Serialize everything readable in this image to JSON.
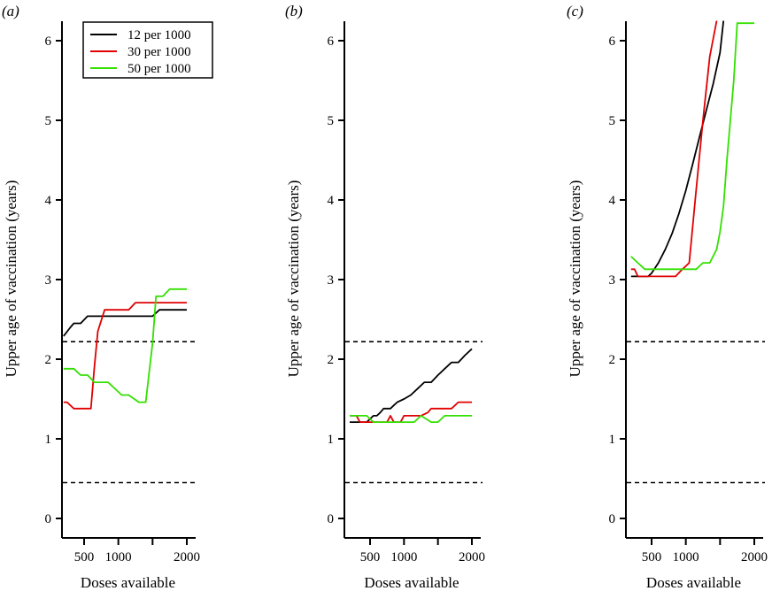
{
  "chart_data": [
    {
      "type": "line",
      "panel_label": "(a)",
      "xlabel": "Doses available",
      "ylabel": "Upper age of vaccination (years)",
      "xticks": [
        500,
        1000,
        1500,
        2000
      ],
      "xtick_labels": [
        "500",
        "1000",
        "",
        "2000"
      ],
      "yticks": [
        0,
        1,
        2,
        3,
        4,
        5,
        6
      ],
      "ytick_labels": [
        "0",
        "1",
        "2",
        "3",
        "4",
        "5",
        "6"
      ],
      "xlim": [
        175,
        2000
      ],
      "ylim": [
        0,
        6.25
      ],
      "reference_lines": [
        2.22,
        0.45
      ],
      "legend": {
        "placement": "top",
        "entries": [
          "12 per 1000",
          "30 per 1000",
          "50 per 1000"
        ]
      },
      "series": [
        {
          "name": "12 per 1000",
          "color": "#000000",
          "x": [
            200,
            300,
            350,
            450,
            550,
            1500,
            1600,
            2000
          ],
          "y": [
            2.29,
            2.4,
            2.45,
            2.45,
            2.54,
            2.54,
            2.62,
            2.62
          ]
        },
        {
          "name": "30 per 1000",
          "color": "#e00000",
          "x": [
            200,
            250,
            350,
            600,
            650,
            700,
            800,
            1150,
            1250,
            2000
          ],
          "y": [
            1.46,
            1.46,
            1.38,
            1.38,
            1.9,
            2.35,
            2.62,
            2.62,
            2.71,
            2.71
          ]
        },
        {
          "name": "50 per 1000",
          "color": "#33e000",
          "x": [
            200,
            350,
            450,
            550,
            650,
            850,
            1050,
            1150,
            1300,
            1400,
            1500,
            1550,
            1650,
            1750,
            2000
          ],
          "y": [
            1.88,
            1.88,
            1.8,
            1.8,
            1.71,
            1.71,
            1.55,
            1.55,
            1.46,
            1.46,
            2.2,
            2.79,
            2.79,
            2.88,
            2.88
          ]
        }
      ]
    },
    {
      "type": "line",
      "panel_label": "(b)",
      "xlabel": "Doses available",
      "ylabel": "Upper age of vaccination (years)",
      "xticks": [
        500,
        1000,
        1500,
        2000
      ],
      "xtick_labels": [
        "500",
        "1000",
        "",
        "2000"
      ],
      "yticks": [
        0,
        1,
        2,
        3,
        4,
        5,
        6
      ],
      "ytick_labels": [
        "0",
        "1",
        "2",
        "3",
        "4",
        "5",
        "6"
      ],
      "xlim": [
        175,
        2000
      ],
      "ylim": [
        0,
        6.25
      ],
      "reference_lines": [
        2.22,
        0.45
      ],
      "series": [
        {
          "name": "12 per 1000",
          "color": "#000000",
          "x": [
            200,
            450,
            500,
            550,
            600,
            650,
            700,
            800,
            850,
            900,
            1000,
            1100,
            1200,
            1300,
            1400,
            1500,
            1600,
            1700,
            1800,
            1900,
            2000
          ],
          "y": [
            1.21,
            1.21,
            1.25,
            1.29,
            1.29,
            1.33,
            1.38,
            1.38,
            1.42,
            1.46,
            1.5,
            1.55,
            1.63,
            1.71,
            1.71,
            1.8,
            1.88,
            1.96,
            1.96,
            2.05,
            2.13
          ]
        },
        {
          "name": "30 per 1000",
          "color": "#e00000",
          "x": [
            200,
            300,
            350,
            450,
            750,
            800,
            850,
            950,
            1000,
            1050,
            1200,
            1250,
            1350,
            1400,
            1500,
            1700,
            1800,
            2000
          ],
          "y": [
            1.29,
            1.29,
            1.21,
            1.21,
            1.21,
            1.29,
            1.21,
            1.21,
            1.29,
            1.29,
            1.29,
            1.29,
            1.33,
            1.38,
            1.38,
            1.38,
            1.46,
            1.46
          ]
        },
        {
          "name": "50 per 1000",
          "color": "#33e000",
          "x": [
            200,
            450,
            550,
            1050,
            1150,
            1250,
            1400,
            1500,
            1600,
            2000
          ],
          "y": [
            1.29,
            1.29,
            1.21,
            1.21,
            1.21,
            1.29,
            1.21,
            1.21,
            1.29,
            1.29
          ]
        }
      ]
    },
    {
      "type": "line",
      "panel_label": "(c)",
      "xlabel": "Doses available",
      "ylabel": "Upper age of vaccination (years)",
      "xticks": [
        500,
        1000,
        1500,
        2000
      ],
      "xtick_labels": [
        "500",
        "1000",
        "",
        "2000"
      ],
      "yticks": [
        0,
        1,
        2,
        3,
        4,
        5,
        6
      ],
      "ytick_labels": [
        "0",
        "1",
        "2",
        "3",
        "4",
        "5",
        "6"
      ],
      "xlim": [
        175,
        2000
      ],
      "ylim": [
        0,
        6.25
      ],
      "reference_lines": [
        2.22,
        0.45
      ],
      "series": [
        {
          "name": "12 per 1000",
          "color": "#000000",
          "x": [
            200,
            450,
            500,
            600,
            700,
            800,
            900,
            1000,
            1100,
            1200,
            1300,
            1400,
            1500,
            1550
          ],
          "y": [
            3.04,
            3.04,
            3.08,
            3.21,
            3.38,
            3.58,
            3.83,
            4.12,
            4.45,
            4.79,
            5.13,
            5.46,
            5.85,
            6.25
          ]
        },
        {
          "name": "30 per 1000",
          "color": "#e00000",
          "x": [
            200,
            250,
            300,
            850,
            950,
            1050,
            1150,
            1250,
            1350,
            1450
          ],
          "y": [
            3.13,
            3.13,
            3.04,
            3.04,
            3.13,
            3.21,
            4.12,
            5.0,
            5.8,
            6.25
          ]
        },
        {
          "name": "50 per 1000",
          "color": "#33e000",
          "x": [
            200,
            300,
            400,
            1000,
            1050,
            1150,
            1250,
            1350,
            1450,
            1500,
            1550,
            1600,
            1700,
            1750,
            2000
          ],
          "y": [
            3.29,
            3.21,
            3.13,
            3.13,
            3.13,
            3.13,
            3.21,
            3.21,
            3.38,
            3.6,
            3.92,
            4.5,
            5.5,
            6.22,
            6.22
          ]
        }
      ]
    }
  ]
}
